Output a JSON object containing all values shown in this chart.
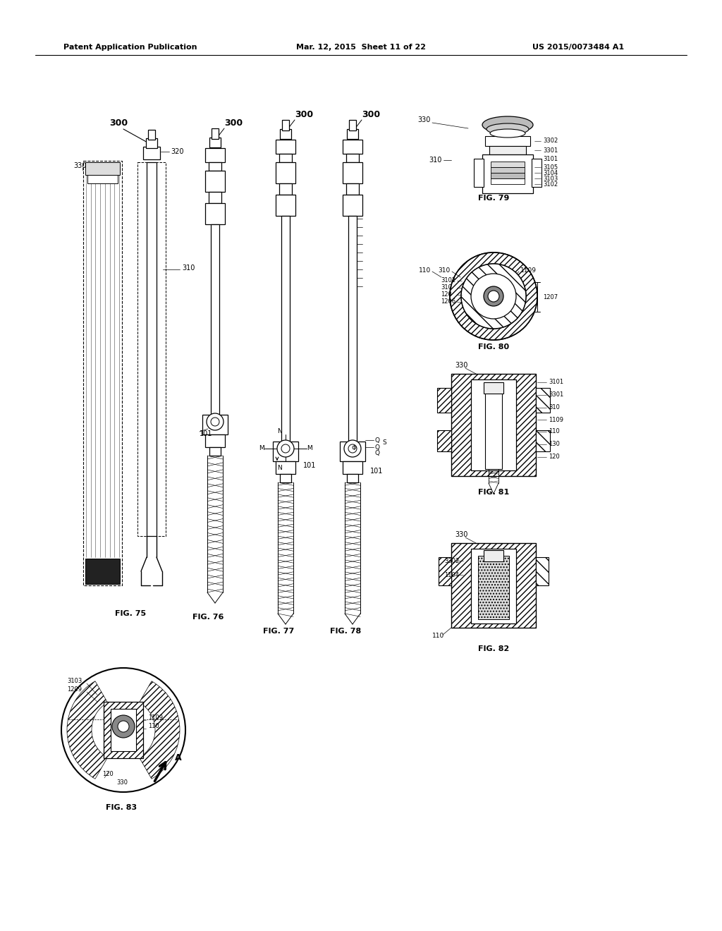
{
  "background_color": "#ffffff",
  "header_left": "Patent Application Publication",
  "header_mid": "Mar. 12, 2015  Sheet 11 of 22",
  "header_right": "US 2015/0073484 A1"
}
